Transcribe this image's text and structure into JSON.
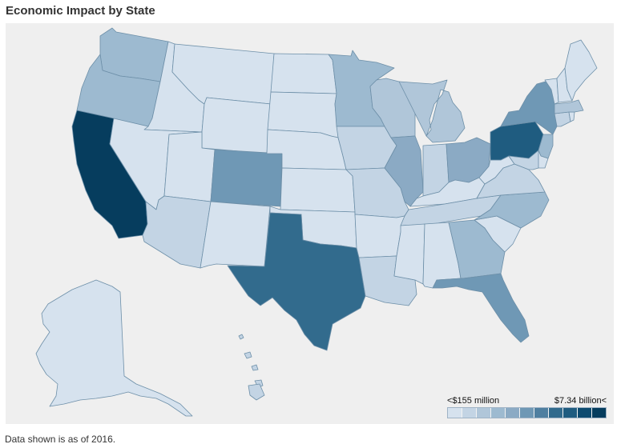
{
  "title": "Economic Impact by State",
  "footnote": "Data shown is as of 2016.",
  "legend": {
    "min_label": "<$155 million",
    "max_label": "$7.34 billion<",
    "colors": [
      "#d6e2ee",
      "#c3d4e4",
      "#b0c6d9",
      "#9dbad0",
      "#8baac4",
      "#6f98b5",
      "#4f7fa0",
      "#326b8d",
      "#1f5c80",
      "#0e4b70",
      "#063d5e"
    ]
  },
  "states": [
    {
      "id": "WA",
      "level": 3
    },
    {
      "id": "OR",
      "level": 3
    },
    {
      "id": "CA",
      "level": 10
    },
    {
      "id": "ID",
      "level": 0
    },
    {
      "id": "NV",
      "level": 0
    },
    {
      "id": "MT",
      "level": 0
    },
    {
      "id": "WY",
      "level": 0
    },
    {
      "id": "UT",
      "level": 0
    },
    {
      "id": "AZ",
      "level": 1
    },
    {
      "id": "CO",
      "level": 5
    },
    {
      "id": "NM",
      "level": 0
    },
    {
      "id": "ND",
      "level": 0
    },
    {
      "id": "SD",
      "level": 0
    },
    {
      "id": "NE",
      "level": 0
    },
    {
      "id": "KS",
      "level": 0
    },
    {
      "id": "OK",
      "level": 0
    },
    {
      "id": "TX",
      "level": 7
    },
    {
      "id": "MN",
      "level": 3
    },
    {
      "id": "IA",
      "level": 1
    },
    {
      "id": "MO",
      "level": 1
    },
    {
      "id": "AR",
      "level": 0
    },
    {
      "id": "LA",
      "level": 1
    },
    {
      "id": "WI",
      "level": 2
    },
    {
      "id": "IL",
      "level": 4
    },
    {
      "id": "MI",
      "level": 2
    },
    {
      "id": "IN",
      "level": 1
    },
    {
      "id": "OH",
      "level": 4
    },
    {
      "id": "KY",
      "level": 0
    },
    {
      "id": "TN",
      "level": 1
    },
    {
      "id": "MS",
      "level": 0
    },
    {
      "id": "AL",
      "level": 0
    },
    {
      "id": "GA",
      "level": 3
    },
    {
      "id": "FL",
      "level": 5
    },
    {
      "id": "SC",
      "level": 0
    },
    {
      "id": "NC",
      "level": 3
    },
    {
      "id": "VA",
      "level": 1
    },
    {
      "id": "WV",
      "level": 0
    },
    {
      "id": "PA",
      "level": 8
    },
    {
      "id": "NY",
      "level": 5
    },
    {
      "id": "NJ",
      "level": 3
    },
    {
      "id": "MD",
      "level": 1
    },
    {
      "id": "DE",
      "level": 0
    },
    {
      "id": "CT",
      "level": 1
    },
    {
      "id": "RI",
      "level": 0
    },
    {
      "id": "MA",
      "level": 2
    },
    {
      "id": "VT",
      "level": 0
    },
    {
      "id": "NH",
      "level": 0
    },
    {
      "id": "ME",
      "level": 0
    },
    {
      "id": "AK",
      "level": 0
    },
    {
      "id": "HI",
      "level": 1
    }
  ]
}
